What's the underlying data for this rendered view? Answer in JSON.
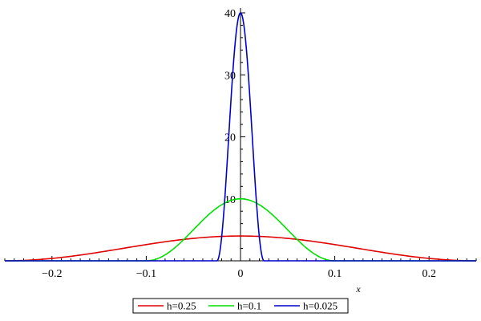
{
  "chart_data": {
    "type": "line",
    "title": "",
    "xlabel": "x",
    "ylabel": "",
    "xlim": [
      -0.25,
      0.25
    ],
    "ylim": [
      0,
      40
    ],
    "grid": false,
    "legend_position": "bottom-center",
    "x_ticks": [
      {
        "value": -0.2,
        "label": "−0.2"
      },
      {
        "value": -0.1,
        "label": "−0.1"
      },
      {
        "value": 0,
        "label": "0"
      },
      {
        "value": 0.1,
        "label": "0.1"
      },
      {
        "value": 0.2,
        "label": "0.2"
      }
    ],
    "y_ticks": [
      {
        "value": 10,
        "label": "10"
      },
      {
        "value": 20,
        "label": "20"
      },
      {
        "value": 30,
        "label": "30"
      },
      {
        "value": 40,
        "label": "40"
      }
    ],
    "series": [
      {
        "name": "h=0.25",
        "color": "#e00000",
        "points": [
          [
            -0.25,
            0
          ],
          [
            -0.2,
            0.44
          ],
          [
            -0.15,
            1.44
          ],
          [
            -0.1,
            2.62
          ],
          [
            -0.05,
            3.54
          ],
          [
            0,
            4.0
          ],
          [
            0.05,
            3.54
          ],
          [
            0.1,
            2.62
          ],
          [
            0.15,
            1.44
          ],
          [
            0.2,
            0.44
          ],
          [
            0.25,
            0
          ]
        ]
      },
      {
        "name": "h=0.1",
        "color": "#00e000",
        "points": [
          [
            -0.1,
            0
          ],
          [
            -0.08,
            1.7
          ],
          [
            -0.06,
            4.2
          ],
          [
            -0.04,
            7.1
          ],
          [
            -0.02,
            9.1
          ],
          [
            0,
            10.0
          ],
          [
            0.02,
            9.1
          ],
          [
            0.04,
            7.1
          ],
          [
            0.06,
            4.2
          ],
          [
            0.08,
            1.7
          ],
          [
            0.1,
            0
          ]
        ]
      },
      {
        "name": "h=0.025",
        "color": "#0000cc",
        "points": [
          [
            -0.025,
            0
          ],
          [
            -0.02,
            6.5
          ],
          [
            -0.015,
            16.8
          ],
          [
            -0.01,
            28.4
          ],
          [
            -0.005,
            36.4
          ],
          [
            0,
            40.0
          ],
          [
            0.005,
            36.4
          ],
          [
            0.01,
            28.4
          ],
          [
            0.015,
            16.8
          ],
          [
            0.02,
            6.5
          ],
          [
            0.025,
            0
          ]
        ]
      }
    ]
  }
}
